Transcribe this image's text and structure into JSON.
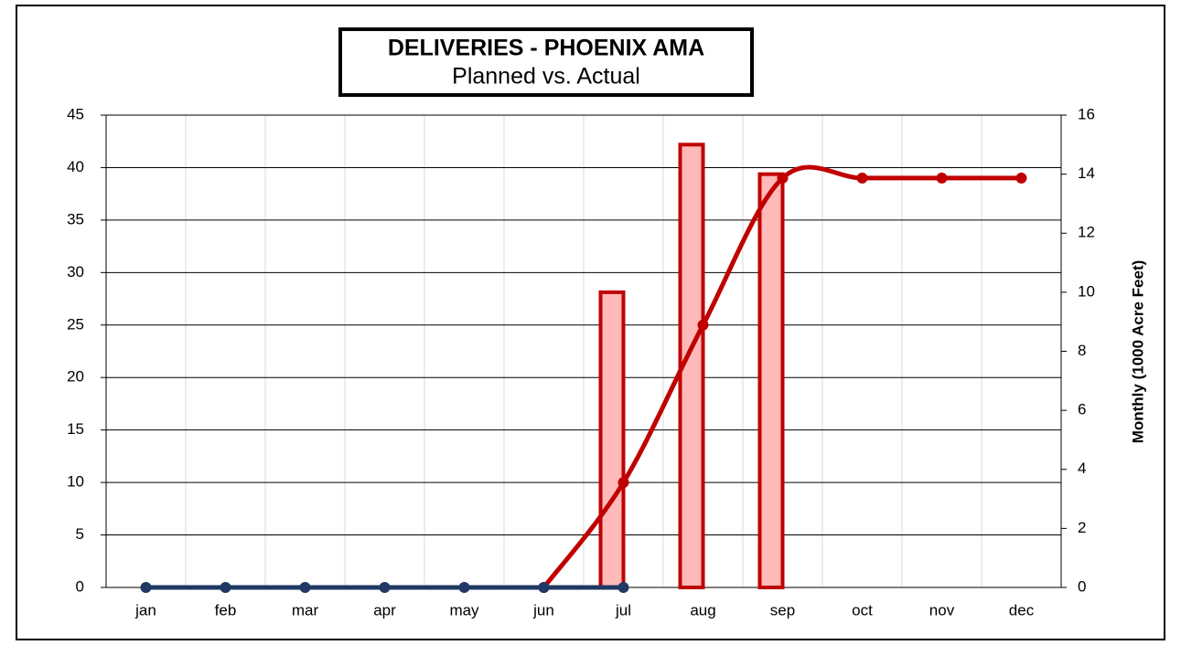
{
  "chart_data": {
    "type": "combo",
    "title": "DELIVERIES - PHOENIX AMA",
    "subtitle": "Planned vs. Actual",
    "y2_label": "Monthly (1000 Acre Feet)",
    "categories": [
      "jan",
      "feb",
      "mar",
      "apr",
      "may",
      "jun",
      "jul",
      "aug",
      "sep",
      "oct",
      "nov",
      "dec"
    ],
    "ylim": [
      0,
      45
    ],
    "yticks": [
      0,
      5,
      10,
      15,
      20,
      25,
      30,
      35,
      40,
      45
    ],
    "y2lim": [
      0,
      16
    ],
    "y2ticks": [
      0,
      2,
      4,
      6,
      8,
      10,
      12,
      14,
      16
    ],
    "grid": true,
    "series": [
      {
        "type": "bar",
        "axis": "y2",
        "color": "#c00000",
        "fill": "#ffb9b9",
        "values": [
          null,
          null,
          null,
          null,
          null,
          null,
          10,
          15,
          14,
          null,
          null,
          null
        ]
      },
      {
        "type": "line",
        "smooth": true,
        "color": "#c00000",
        "values": [
          null,
          null,
          null,
          null,
          null,
          0,
          10,
          25,
          39,
          39,
          39,
          39
        ]
      },
      {
        "type": "line",
        "smooth": false,
        "color": "#1f3864",
        "values": [
          0,
          0,
          0,
          0,
          0,
          0,
          0,
          null,
          null,
          null,
          null,
          null
        ]
      }
    ]
  }
}
